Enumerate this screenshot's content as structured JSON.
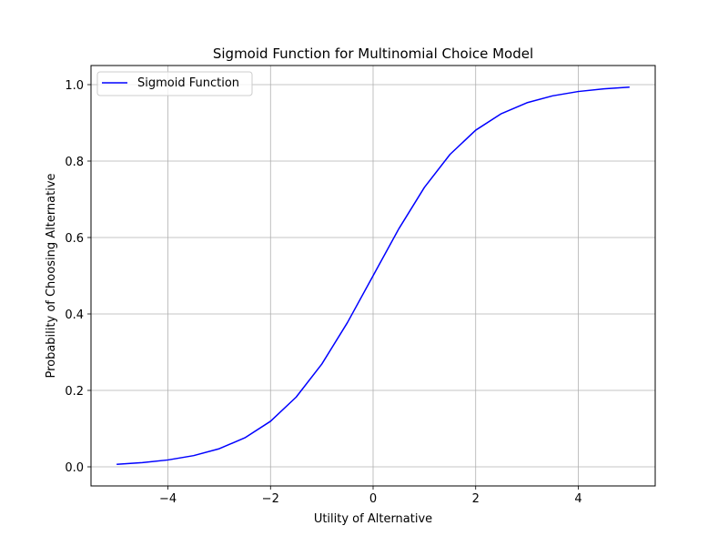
{
  "chart_data": {
    "type": "line",
    "title": "Sigmoid Function for Multinomial Choice Model",
    "xlabel": "Utility of Alternative",
    "ylabel": "Probability of Choosing Alternative",
    "xlim": [
      -5.5,
      5.5
    ],
    "ylim": [
      -0.05,
      1.05
    ],
    "grid": true,
    "legend_position": "upper-left",
    "x_ticks": [
      -4,
      -2,
      0,
      2,
      4
    ],
    "x_tick_labels": [
      "−4",
      "−2",
      "0",
      "2",
      "4"
    ],
    "y_ticks": [
      0.0,
      0.2,
      0.4,
      0.6,
      0.8,
      1.0
    ],
    "y_tick_labels": [
      "0.0",
      "0.2",
      "0.4",
      "0.6",
      "0.8",
      "1.0"
    ],
    "series": [
      {
        "name": "Sigmoid Function",
        "color": "#0000ff",
        "x": [
          -5,
          -4.5,
          -4,
          -3.5,
          -3,
          -2.5,
          -2,
          -1.5,
          -1,
          -0.5,
          0,
          0.5,
          1,
          1.5,
          2,
          2.5,
          3,
          3.5,
          4,
          4.5,
          5
        ],
        "y": [
          0.0067,
          0.011,
          0.018,
          0.0293,
          0.0474,
          0.0759,
          0.1192,
          0.1824,
          0.2689,
          0.3775,
          0.5,
          0.6225,
          0.7311,
          0.8176,
          0.8808,
          0.9241,
          0.9526,
          0.9707,
          0.982,
          0.989,
          0.9933
        ]
      }
    ]
  }
}
